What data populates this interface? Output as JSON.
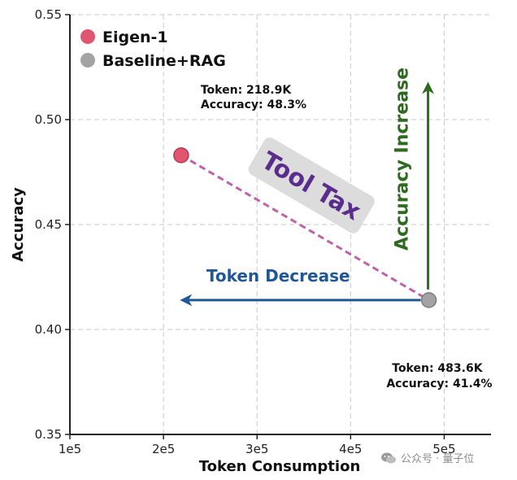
{
  "chart_data": {
    "type": "scatter",
    "title": "",
    "xlabel": "Token Consumption",
    "ylabel": "Accuracy",
    "xlim": [
      100000,
      550000
    ],
    "ylim": [
      0.35,
      0.55
    ],
    "xticks": [
      100000,
      200000,
      300000,
      400000,
      500000
    ],
    "xtick_labels": [
      "1e5",
      "2e5",
      "3e5",
      "4e5",
      "5e5"
    ],
    "yticks": [
      0.35,
      0.4,
      0.45,
      0.5,
      0.55
    ],
    "ytick_labels": [
      "0.35",
      "0.40",
      "0.45",
      "0.50",
      "0.55"
    ],
    "grid": true,
    "legend_position": "top-left",
    "series": [
      {
        "name": "Eigen-1",
        "color": "#e05570",
        "points": [
          {
            "x": 218900,
            "y": 0.483
          }
        ],
        "annotation": [
          "Token: 218.9K",
          "Accuracy: 48.3%"
        ]
      },
      {
        "name": "Baseline+RAG",
        "color": "#a3a3a3",
        "points": [
          {
            "x": 483600,
            "y": 0.414
          }
        ],
        "annotation": [
          "Token: 483.6K",
          "Accuracy: 41.4%"
        ]
      }
    ],
    "annotations": {
      "tool_tax": {
        "text": "Tool Tax",
        "color": "#5a2d8c",
        "line_color": "#c062a8"
      },
      "token_decrease": {
        "text": "Token Decrease",
        "color": "#1f5797"
      },
      "accuracy_increase": {
        "text": "Accuracy Increase",
        "color": "#2e6a1f"
      }
    }
  },
  "watermark": {
    "text": "公众号 · 量子位",
    "icon": "wechat-icon"
  }
}
